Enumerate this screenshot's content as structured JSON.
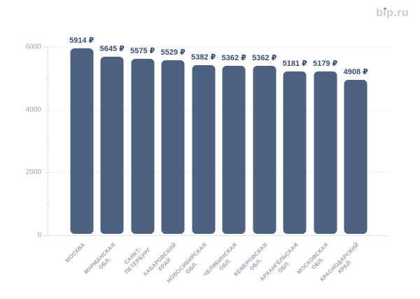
{
  "logo": {
    "text": "bip.ru",
    "text_color": "#C7CBD8",
    "dot_color": "#EE6F58"
  },
  "chart_data": {
    "type": "bar",
    "title": "",
    "categories": [
      "МОСКВА",
      "МУРМАНСКАЯ ОБЛ.",
      "САНКТ-ПЕТЕРБУРГ",
      "ХАБАРОВСКИЙ КРАЙ",
      "НОВОСИБИРСКАЯ ОБЛ.",
      "ЧЕЛЯБИНСКАЯ ОБЛ.",
      "КЕМЕРОВСКАЯ ОБЛ.",
      "АРХАНГЕЛЬСКАЯ ОБЛ.",
      "МОСКОВСКАЯ ОБЛ.",
      "КРАСНОДАРСКИЙ КРАЙ"
    ],
    "category_lines": [
      [
        "МОСКВА"
      ],
      [
        "МУРМАНСКАЯ",
        "ОБЛ."
      ],
      [
        "САНКТ-",
        "ПЕТЕРБУРГ"
      ],
      [
        "ХАБАРОВСКИЙ",
        "КРАЙ"
      ],
      [
        "НОВОСИБИРСКАЯ",
        "ОБЛ."
      ],
      [
        "ЧЕЛЯБИНСКАЯ",
        "ОБЛ."
      ],
      [
        "КЕМЕРОВСКАЯ",
        "ОБЛ."
      ],
      [
        "АРХАНГЕЛЬСКАЯ",
        "ОБЛ."
      ],
      [
        "МОСКОВСКАЯ",
        "ОБЛ."
      ],
      [
        "КРАСНОДАРСКИЙ",
        "КРАЙ"
      ]
    ],
    "values": [
      5914,
      5645,
      5575,
      5529,
      5382,
      5362,
      5362,
      5181,
      5179,
      4908
    ],
    "value_labels": [
      "5914 ₽",
      "5645 ₽",
      "5575 ₽",
      "5529 ₽",
      "5382 ₽",
      "5362 ₽",
      "5362 ₽",
      "5181 ₽",
      "5179 ₽",
      "4908 ₽"
    ],
    "value_suffix": " ₽",
    "xlabel": "",
    "ylabel": "",
    "ylim": [
      0,
      6000
    ],
    "y_major_ticks": [
      0,
      2000,
      4000,
      6000
    ],
    "y_minor_ticks": [
      1000,
      3000,
      5000
    ],
    "grid": "dotted horizontal lines at major ticks",
    "legend": "none",
    "bar_color": "#4D6180",
    "value_label_color": "#374D6F",
    "axis_label_color": "#9AA1AD"
  }
}
